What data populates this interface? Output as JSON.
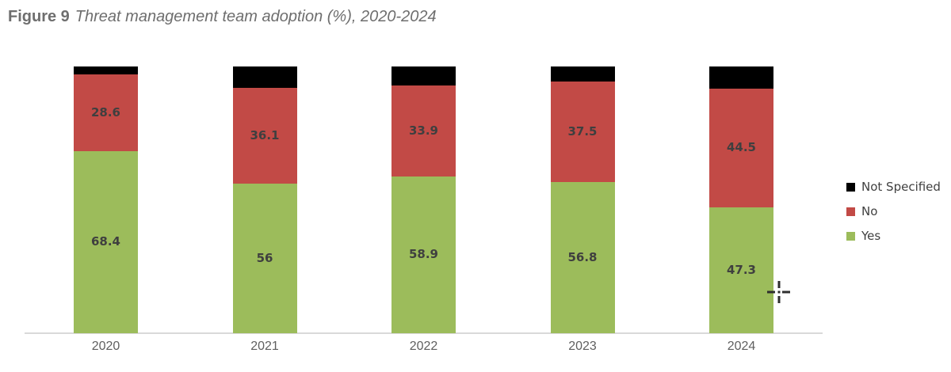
{
  "figure": {
    "title_prefix": "Figure 9",
    "title_text": "Threat management team adoption (%), 2020-2024"
  },
  "chart_data": {
    "type": "bar",
    "stacked": true,
    "title": "Figure 9 Threat management team adoption (%), 2020-2024",
    "categories": [
      "2020",
      "2021",
      "2022",
      "2023",
      "2024"
    ],
    "series": [
      {
        "name": "Yes",
        "color": "#9CBC5B",
        "values": [
          68.4,
          56,
          58.9,
          56.8,
          47.3
        ],
        "labels": [
          "68.4",
          "56",
          "58.9",
          "56.8",
          "47.3"
        ],
        "show_labels": true
      },
      {
        "name": "No",
        "color": "#C24A46",
        "values": [
          28.6,
          36.1,
          33.9,
          37.5,
          44.5
        ],
        "labels": [
          "28.6",
          "36.1",
          "33.9",
          "37.5",
          "44.5"
        ],
        "show_labels": true
      },
      {
        "name": "Not Specified",
        "color": "#000000",
        "values": [
          3.0,
          7.9,
          7.2,
          5.7,
          8.2
        ],
        "labels": [
          "",
          "",
          "",
          "",
          ""
        ],
        "show_labels": false
      }
    ],
    "xlabel": "",
    "ylabel": "",
    "ylim": [
      0,
      100
    ],
    "grid": false,
    "legend_position": "right"
  },
  "legend": {
    "items": [
      {
        "label": "Not Specified",
        "color": "#000000"
      },
      {
        "label": "No",
        "color": "#C24A46"
      },
      {
        "label": "Yes",
        "color": "#9CBC5B"
      }
    ]
  },
  "cursor": {
    "name": "precision-crosshair"
  },
  "colors": {
    "title_text": "#6E6E6E",
    "axis_line": "#D9D9D9",
    "axis_label": "#5F5F5F",
    "value_label": "#3F3F3F"
  }
}
